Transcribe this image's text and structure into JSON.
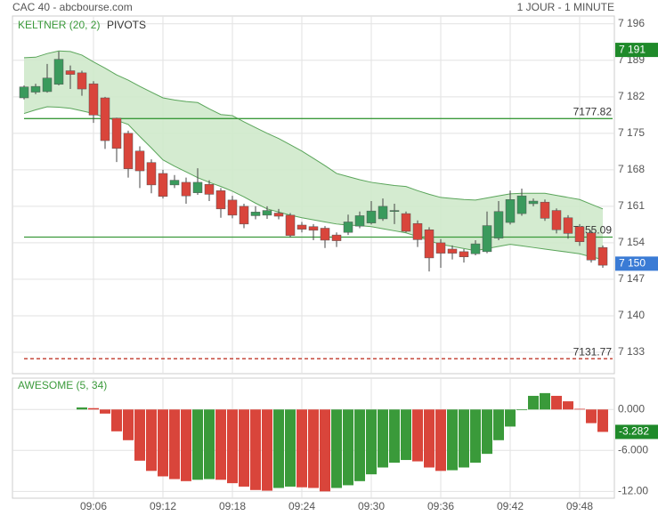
{
  "header": {
    "title": "CAC 40 - abcbourse.com",
    "period": "1 JOUR - 1 MINUTE"
  },
  "chart_data": [
    {
      "type": "candlestick",
      "indicator_label": "KELTNER (20, 2)",
      "overlay_label": "PIVOTS",
      "categories": [
        null,
        null,
        null,
        null,
        null,
        null,
        "09:06",
        null,
        null,
        null,
        null,
        null,
        "09:12",
        null,
        null,
        null,
        null,
        null,
        "09:18",
        null,
        null,
        null,
        null,
        null,
        "09:24",
        null,
        null,
        null,
        null,
        null,
        "09:30",
        null,
        null,
        null,
        null,
        null,
        "09:36",
        null,
        null,
        null,
        null,
        null,
        "09:42",
        null,
        null,
        null,
        null,
        null,
        "09:48",
        null,
        null
      ],
      "open": [
        7181.8,
        7182.9,
        7183.0,
        7184.4,
        7187.0,
        7186.6,
        7184.5,
        7181.8,
        7177.9,
        7175.0,
        7171.6,
        7169.4,
        7167.3,
        7165.1,
        7165.6,
        7163.6,
        7165.2,
        7164.0,
        7162.2,
        7161.0,
        7159.2,
        7159.3,
        7159.7,
        7159.3,
        7157.4,
        7157.1,
        7156.8,
        7155.5,
        7156.0,
        7157.2,
        7157.8,
        7158.6,
        7160.0,
        7159.6,
        7157.7,
        7156.5,
        7154.0,
        7152.8,
        7152.3,
        7151.9,
        7152.3,
        7154.9,
        7157.9,
        7159.6,
        7161.5,
        7161.8,
        7160.2,
        7158.8,
        7157.1,
        7155.9,
        7153.1
      ],
      "high": [
        7184.2,
        7184.5,
        7188.3,
        7190.7,
        7188.0,
        7187.0,
        7185.0,
        7182.0,
        7178.0,
        7175.5,
        7172.5,
        7170.0,
        7168.0,
        7167.0,
        7166.5,
        7168.3,
        7166.0,
        7164.5,
        7163.0,
        7161.5,
        7161.0,
        7161.0,
        7160.5,
        7159.7,
        7158.0,
        7157.6,
        7157.2,
        7156.0,
        7159.4,
        7160.0,
        7162.0,
        7162.5,
        7161.5,
        7160.0,
        7158.3,
        7157.0,
        7154.7,
        7153.5,
        7152.8,
        7154.5,
        7160.0,
        7162.0,
        7164.0,
        7164.4,
        7162.5,
        7162.3,
        7160.6,
        7159.3,
        7157.6,
        7156.4,
        7153.5
      ],
      "low": [
        7181.5,
        7182.5,
        7182.8,
        7184.2,
        7183.5,
        7182.2,
        7177.0,
        7172.0,
        7169.5,
        7166.5,
        7164.5,
        7163.5,
        7162.5,
        7164.5,
        7161.5,
        7163.2,
        7162.0,
        7158.8,
        7158.7,
        7156.8,
        7158.5,
        7158.6,
        7158.5,
        7155.0,
        7156.0,
        7154.5,
        7153.0,
        7153.2,
        7155.5,
        7156.8,
        7157.5,
        7158.2,
        7157.6,
        7156.0,
        7153.2,
        7148.5,
        7149.2,
        7150.8,
        7150.2,
        7151.6,
        7152.0,
        7154.5,
        7157.5,
        7159.2,
        7161.0,
        7158.2,
        7155.8,
        7154.8,
        7153.4,
        7150.2,
        7149.2
      ],
      "close": [
        7183.9,
        7184.0,
        7185.6,
        7189.2,
        7186.3,
        7183.5,
        7178.5,
        7173.6,
        7172.1,
        7168.2,
        7167.8,
        7165.1,
        7162.9,
        7166.0,
        7163.0,
        7165.6,
        7163.3,
        7160.5,
        7159.3,
        7157.6,
        7159.9,
        7160.2,
        7159.1,
        7155.4,
        7156.6,
        7156.4,
        7154.5,
        7154.4,
        7158.0,
        7159.2,
        7160.1,
        7161.0,
        7160.2,
        7156.2,
        7154.6,
        7151.1,
        7152.0,
        7152.0,
        7151.3,
        7153.8,
        7157.3,
        7160.0,
        7162.3,
        7163.0,
        7162.0,
        7158.7,
        7156.5,
        7155.8,
        7154.2,
        7150.7,
        7149.7
      ],
      "band_upper": [
        7189.5,
        7189.6,
        7190.3,
        7190.8,
        7190.7,
        7190.0,
        7188.7,
        7187.5,
        7186.2,
        7185.2,
        7184.0,
        7182.9,
        7181.8,
        7181.4,
        7181.1,
        7180.9,
        7179.7,
        7178.6,
        7178.4,
        7177.2,
        7176.1,
        7175.0,
        7174.0,
        7172.8,
        7171.6,
        7170.2,
        7168.8,
        7167.3,
        7166.7,
        7166.1,
        7165.6,
        7165.3,
        7165.0,
        7164.8,
        7164.0,
        7163.3,
        7162.7,
        7162.5,
        7162.3,
        7162.2,
        7162.6,
        7163.0,
        7163.4,
        7163.5,
        7163.5,
        7163.5,
        7163.1,
        7162.7,
        7162.3,
        7161.4,
        7160.5
      ],
      "band_lower": [
        7178.8,
        7179.5,
        7180.1,
        7180.0,
        7179.8,
        7179.3,
        7178.8,
        7178.0,
        7177.5,
        7176.7,
        7174.4,
        7172.2,
        7169.9,
        7168.7,
        7167.6,
        7166.5,
        7165.6,
        7164.8,
        7163.9,
        7162.8,
        7161.6,
        7160.5,
        7159.9,
        7159.3,
        7158.8,
        7158.4,
        7158.0,
        7157.6,
        7157.4,
        7157.3,
        7157.1,
        7156.7,
        7156.3,
        7155.9,
        7155.2,
        7154.4,
        7153.7,
        7153.3,
        7152.9,
        7152.5,
        7152.9,
        7153.3,
        7153.7,
        7153.4,
        7153.1,
        7152.8,
        7152.5,
        7152.2,
        7151.9,
        7151.3,
        7150.8
      ],
      "up_color": "#3a9a5c",
      "down_color": "#d9453b",
      "band_color": "#5aa55a",
      "band_fill": "#cfe9cb",
      "pivots": [
        {
          "value": 7177.82,
          "color": "#3b9a3b",
          "dashed": false
        },
        {
          "value": 7155.09,
          "color": "#3b9a3b",
          "dashed": false
        },
        {
          "value": 7131.77,
          "color": "#c0392b",
          "dashed": true
        }
      ],
      "markers": [
        {
          "value": 7191,
          "label": "7 191",
          "color": "#1f8a2a"
        },
        {
          "value": 7150,
          "label": "7 150",
          "color": "#3a7bd5"
        }
      ],
      "ylim": [
        7128.9,
        7197.5
      ],
      "yticks": [
        {
          "value": 7196,
          "label": "7 196"
        },
        {
          "value": 7189,
          "label": "7 189"
        },
        {
          "value": 7182,
          "label": "7 182"
        },
        {
          "value": 7175,
          "label": "7 175"
        },
        {
          "value": 7168,
          "label": "7 168"
        },
        {
          "value": 7161,
          "label": "7 161"
        },
        {
          "value": 7154,
          "label": "7 154"
        },
        {
          "value": 7147,
          "label": "7 147"
        },
        {
          "value": 7140,
          "label": "7 140"
        },
        {
          "value": 7133,
          "label": "7 133"
        }
      ],
      "grid": true
    },
    {
      "type": "bar",
      "indicator_label": "AWESOME (5, 34)",
      "values": [
        null,
        null,
        null,
        null,
        null,
        0.3,
        0.2,
        -0.6,
        -3.2,
        -4.5,
        -7.5,
        -9.0,
        -9.8,
        -10.2,
        -10.5,
        -10.3,
        -10.2,
        -10.3,
        -10.8,
        -11.3,
        -11.8,
        -11.9,
        -11.5,
        -11.3,
        -11.4,
        -11.5,
        -12.0,
        -11.5,
        -11.1,
        -10.5,
        -9.5,
        -8.5,
        -7.8,
        -7.4,
        -7.6,
        -8.5,
        -9.0,
        -8.9,
        -8.5,
        -7.8,
        -6.5,
        -4.5,
        -2.5,
        -0.1,
        2.0,
        2.4,
        2.0,
        1.2,
        0.1,
        -2.0,
        -3.282
      ],
      "up_color": "#3a9a3a",
      "down_color": "#d9453b",
      "markers": [
        {
          "value": -3.282,
          "label": "-3.282",
          "color": "#1f8a2a"
        }
      ],
      "ylim": [
        -13,
        4.6
      ],
      "yticks": [
        {
          "value": 0,
          "label": "0.000"
        },
        {
          "value": -6,
          "label": "-6.000"
        },
        {
          "value": -12,
          "label": "-12.00"
        }
      ],
      "grid": true
    }
  ]
}
